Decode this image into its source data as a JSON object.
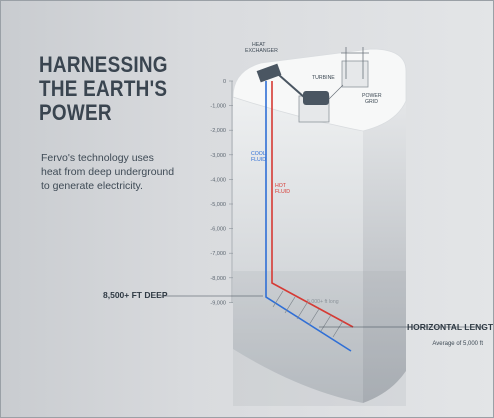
{
  "title_lines": [
    "HARNESSING",
    "THE EARTH'S",
    "POWER"
  ],
  "description_lines": [
    "Fervo's technology uses",
    "heat from deep underground",
    "to generate electricity."
  ],
  "labels": {
    "heat_exchanger": [
      "HEAT",
      "EXCHANGER"
    ],
    "turbine": "TURBINE",
    "power_grid": [
      "POWER",
      "GRID"
    ],
    "cool_fluid": [
      "COOL",
      "FLUID"
    ],
    "hot_fluid": [
      "HOT",
      "FLUID"
    ],
    "fractures": "5,000+ ft long"
  },
  "depth_ticks": [
    "0",
    "-1,000",
    "-2,000",
    "-3,000",
    "-4,000",
    "-5,000",
    "-6,000",
    "-7,000",
    "-8,000",
    "-9,000"
  ],
  "depth_callout": "8,500+ FT DEEP",
  "horizontal": {
    "title": "HORIZONTAL LENGTH",
    "subtitle": "Average of 5,000 ft"
  },
  "colors": {
    "cool_fluid": "#2f6fd6",
    "hot_fluid": "#d63a34",
    "text": "#3a4550"
  }
}
